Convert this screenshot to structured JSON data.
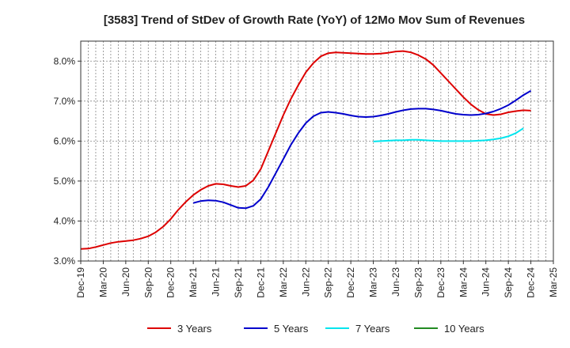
{
  "chart_data": {
    "type": "line",
    "title": "[3583]  Trend of StDev of Growth Rate (YoY) of 12Mo Mov Sum of Revenues",
    "xlabel": "",
    "ylabel": "",
    "ylim": [
      3.0,
      8.5
    ],
    "y_ticks": [
      3.0,
      4.0,
      5.0,
      6.0,
      7.0,
      8.0
    ],
    "y_tick_labels": [
      "3.0%",
      "4.0%",
      "5.0%",
      "6.0%",
      "7.0%",
      "8.0%"
    ],
    "x_tick_labels": [
      "Dec-19",
      "Mar-20",
      "Jun-20",
      "Sep-20",
      "Dec-20",
      "Mar-21",
      "Jun-21",
      "Sep-21",
      "Dec-21",
      "Mar-22",
      "Jun-22",
      "Sep-22",
      "Dec-22",
      "Mar-23",
      "Jun-23",
      "Sep-23",
      "Dec-23",
      "Mar-24",
      "Jun-24",
      "Sep-24",
      "Dec-24",
      "Mar-25"
    ],
    "x_range": [
      0,
      63
    ],
    "grid": true,
    "legend_position": "bottom",
    "series": [
      {
        "name": "3 Years",
        "color": "#dd0000",
        "start_index": 0,
        "values": [
          3.3,
          3.31,
          3.35,
          3.4,
          3.45,
          3.48,
          3.5,
          3.52,
          3.56,
          3.62,
          3.72,
          3.86,
          4.05,
          4.28,
          4.48,
          4.65,
          4.78,
          4.88,
          4.93,
          4.92,
          4.88,
          4.85,
          4.88,
          5.02,
          5.3,
          5.75,
          6.2,
          6.65,
          7.05,
          7.4,
          7.72,
          7.95,
          8.12,
          8.2,
          8.22,
          8.21,
          8.2,
          8.19,
          8.18,
          8.18,
          8.19,
          8.21,
          8.24,
          8.25,
          8.22,
          8.15,
          8.05,
          7.9,
          7.7,
          7.5,
          7.3,
          7.1,
          6.92,
          6.78,
          6.68,
          6.65,
          6.67,
          6.72,
          6.75,
          6.77,
          6.76
        ]
      },
      {
        "name": "5 Years",
        "color": "#0000cc",
        "start_index": 15,
        "values": [
          4.45,
          4.5,
          4.52,
          4.51,
          4.47,
          4.4,
          4.33,
          4.32,
          4.38,
          4.55,
          4.85,
          5.2,
          5.55,
          5.9,
          6.2,
          6.45,
          6.62,
          6.71,
          6.73,
          6.71,
          6.68,
          6.64,
          6.61,
          6.6,
          6.61,
          6.64,
          6.68,
          6.73,
          6.77,
          6.8,
          6.81,
          6.81,
          6.79,
          6.76,
          6.72,
          6.68,
          6.66,
          6.65,
          6.66,
          6.69,
          6.74,
          6.81,
          6.9,
          7.02,
          7.15,
          7.26
        ]
      },
      {
        "name": "7 Years",
        "color": "#00e5ee",
        "start_index": 39,
        "values": [
          5.99,
          6.0,
          6.01,
          6.02,
          6.02,
          6.03,
          6.03,
          6.02,
          6.01,
          6.0,
          6.0,
          6.0,
          6.0,
          6.0,
          6.01,
          6.02,
          6.04,
          6.07,
          6.12,
          6.2,
          6.32
        ]
      },
      {
        "name": "10 Years",
        "color": "#228b22",
        "start_index": 0,
        "values": []
      }
    ]
  }
}
